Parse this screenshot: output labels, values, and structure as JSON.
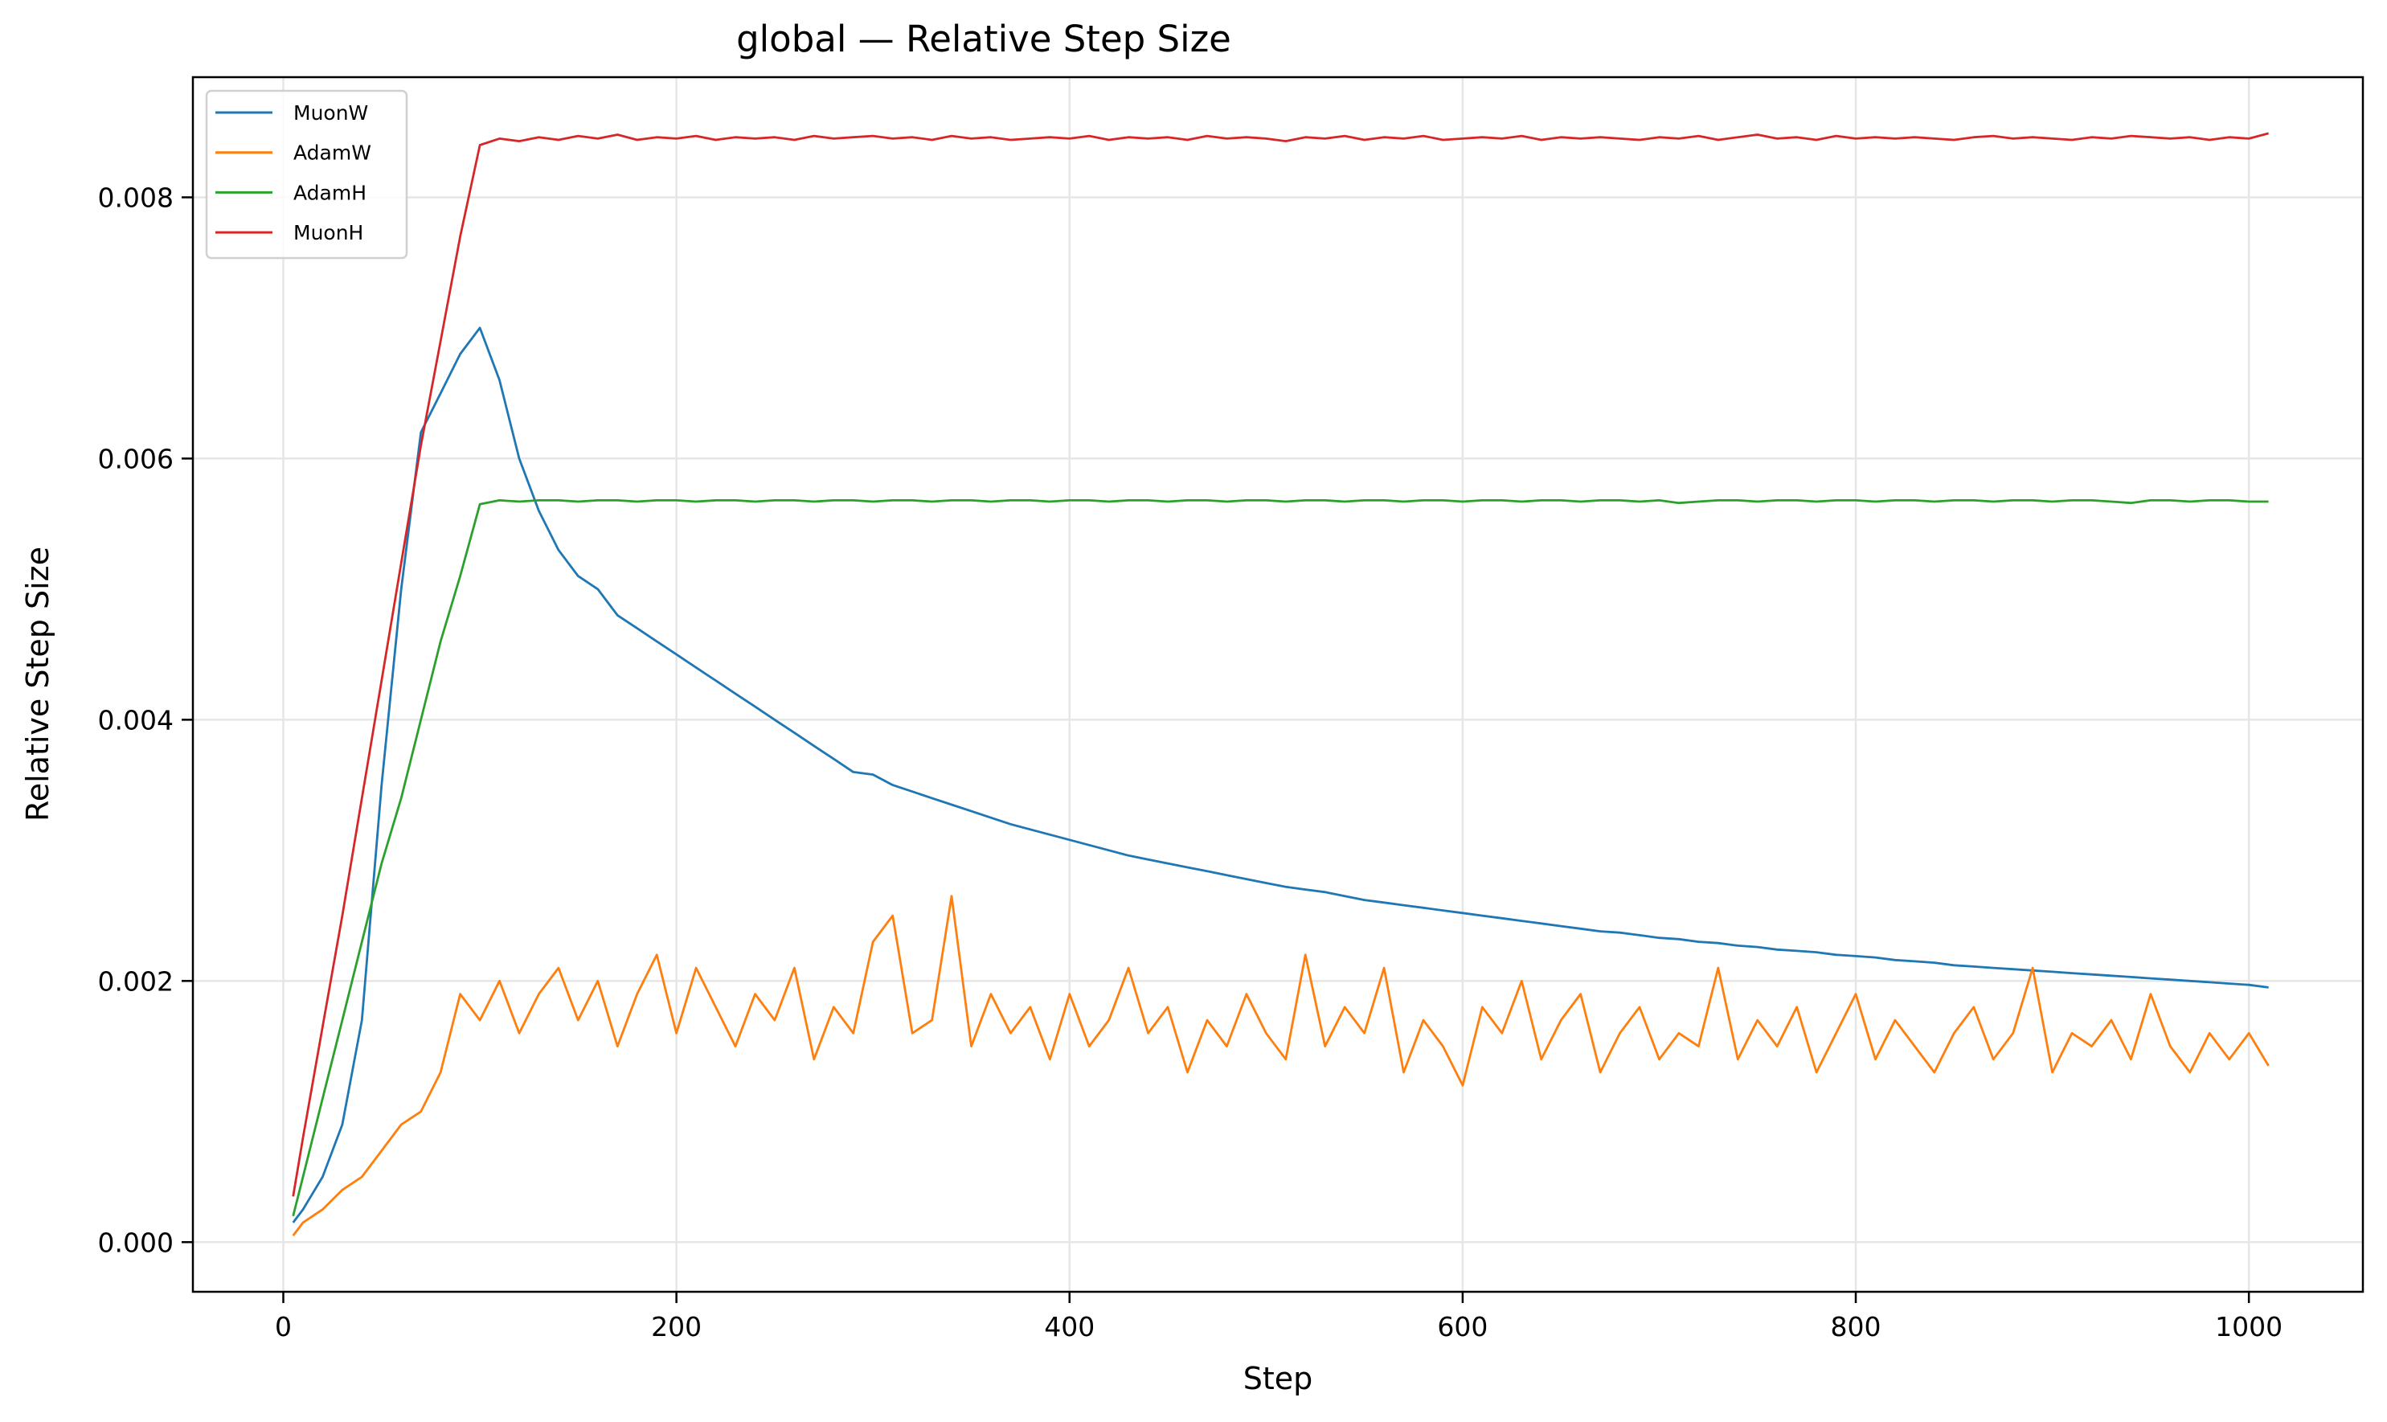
{
  "chart_data": {
    "type": "line",
    "title": "global — Relative Step Size",
    "xlabel": "Step",
    "ylabel": "Relative Step Size",
    "xlim": [
      -46,
      1058
    ],
    "ylim": [
      -0.00038,
      0.00892
    ],
    "xticks": [
      0,
      200,
      400,
      600,
      800,
      1000
    ],
    "xtick_labels": [
      "0",
      "200",
      "400",
      "600",
      "800",
      "1000"
    ],
    "yticks": [
      0,
      0.002,
      0.004,
      0.006,
      0.008
    ],
    "ytick_labels": [
      "0.000",
      "0.002",
      "0.004",
      "0.006",
      "0.008"
    ],
    "grid": true,
    "legend_position": "top-left",
    "x": [
      5,
      10,
      20,
      30,
      40,
      50,
      60,
      70,
      80,
      90,
      100,
      110,
      120,
      130,
      140,
      150,
      160,
      170,
      180,
      190,
      200,
      210,
      220,
      230,
      240,
      250,
      260,
      270,
      280,
      290,
      300,
      310,
      320,
      330,
      340,
      350,
      360,
      370,
      380,
      390,
      400,
      410,
      420,
      430,
      440,
      450,
      460,
      470,
      480,
      490,
      500,
      510,
      520,
      530,
      540,
      550,
      560,
      570,
      580,
      590,
      600,
      610,
      620,
      630,
      640,
      650,
      660,
      670,
      680,
      690,
      700,
      710,
      720,
      730,
      740,
      750,
      760,
      770,
      780,
      790,
      800,
      810,
      820,
      830,
      840,
      850,
      860,
      870,
      880,
      890,
      900,
      910,
      920,
      930,
      940,
      950,
      960,
      970,
      980,
      990,
      1000,
      1010
    ],
    "series": [
      {
        "name": "MuonW",
        "color": "#1f77b4",
        "values": [
          0.00015,
          0.00025,
          0.0005,
          0.0009,
          0.0017,
          0.0035,
          0.005,
          0.0062,
          0.0065,
          0.0068,
          0.007,
          0.0066,
          0.006,
          0.0056,
          0.0053,
          0.0051,
          0.005,
          0.0048,
          0.0047,
          0.0046,
          0.0045,
          0.0044,
          0.0043,
          0.0042,
          0.0041,
          0.004,
          0.0039,
          0.0038,
          0.0037,
          0.0036,
          0.00358,
          0.0035,
          0.00345,
          0.0034,
          0.00335,
          0.0033,
          0.00325,
          0.0032,
          0.00316,
          0.00312,
          0.00308,
          0.00304,
          0.003,
          0.00296,
          0.00293,
          0.0029,
          0.00287,
          0.00284,
          0.00281,
          0.00278,
          0.00275,
          0.00272,
          0.0027,
          0.00268,
          0.00265,
          0.00262,
          0.0026,
          0.00258,
          0.00256,
          0.00254,
          0.00252,
          0.0025,
          0.00248,
          0.00246,
          0.00244,
          0.00242,
          0.0024,
          0.00238,
          0.00237,
          0.00235,
          0.00233,
          0.00232,
          0.0023,
          0.00229,
          0.00227,
          0.00226,
          0.00224,
          0.00223,
          0.00222,
          0.0022,
          0.00219,
          0.00218,
          0.00216,
          0.00215,
          0.00214,
          0.00212,
          0.00211,
          0.0021,
          0.00209,
          0.00208,
          0.00207,
          0.00206,
          0.00205,
          0.00204,
          0.00203,
          0.00202,
          0.00201,
          0.002,
          0.00199,
          0.00198,
          0.00197,
          0.00195
        ]
      },
      {
        "name": "AdamW",
        "color": "#ff7f0e",
        "values": [
          5e-05,
          0.00015,
          0.00025,
          0.0004,
          0.0005,
          0.0007,
          0.0009,
          0.001,
          0.0013,
          0.0019,
          0.0017,
          0.002,
          0.0016,
          0.0019,
          0.0021,
          0.0017,
          0.002,
          0.0015,
          0.0019,
          0.0022,
          0.0016,
          0.0021,
          0.0018,
          0.0015,
          0.0019,
          0.0017,
          0.0021,
          0.0014,
          0.0018,
          0.0016,
          0.0023,
          0.0025,
          0.0016,
          0.0017,
          0.00265,
          0.0015,
          0.0019,
          0.0016,
          0.0018,
          0.0014,
          0.0019,
          0.0015,
          0.0017,
          0.0021,
          0.0016,
          0.0018,
          0.0013,
          0.0017,
          0.0015,
          0.0019,
          0.0016,
          0.0014,
          0.0022,
          0.0015,
          0.0018,
          0.0016,
          0.0021,
          0.0013,
          0.0017,
          0.0015,
          0.0012,
          0.0018,
          0.0016,
          0.002,
          0.0014,
          0.0017,
          0.0019,
          0.0013,
          0.0016,
          0.0018,
          0.0014,
          0.0016,
          0.0015,
          0.0021,
          0.0014,
          0.0017,
          0.0015,
          0.0018,
          0.0013,
          0.0016,
          0.0019,
          0.0014,
          0.0017,
          0.0015,
          0.0013,
          0.0016,
          0.0018,
          0.0014,
          0.0016,
          0.0021,
          0.0013,
          0.0016,
          0.0015,
          0.0017,
          0.0014,
          0.0019,
          0.0015,
          0.0013,
          0.0016,
          0.0014,
          0.0016,
          0.00135
        ]
      },
      {
        "name": "AdamH",
        "color": "#2ca02c",
        "values": [
          0.0002,
          0.0005,
          0.0011,
          0.0017,
          0.0023,
          0.0029,
          0.0034,
          0.004,
          0.0046,
          0.0051,
          0.00565,
          0.00568,
          0.00567,
          0.00568,
          0.00568,
          0.00567,
          0.00568,
          0.00568,
          0.00567,
          0.00568,
          0.00568,
          0.00567,
          0.00568,
          0.00568,
          0.00567,
          0.00568,
          0.00568,
          0.00567,
          0.00568,
          0.00568,
          0.00567,
          0.00568,
          0.00568,
          0.00567,
          0.00568,
          0.00568,
          0.00567,
          0.00568,
          0.00568,
          0.00567,
          0.00568,
          0.00568,
          0.00567,
          0.00568,
          0.00568,
          0.00567,
          0.00568,
          0.00568,
          0.00567,
          0.00568,
          0.00568,
          0.00567,
          0.00568,
          0.00568,
          0.00567,
          0.00568,
          0.00568,
          0.00567,
          0.00568,
          0.00568,
          0.00567,
          0.00568,
          0.00568,
          0.00567,
          0.00568,
          0.00568,
          0.00567,
          0.00568,
          0.00568,
          0.00567,
          0.00568,
          0.00566,
          0.00567,
          0.00568,
          0.00568,
          0.00567,
          0.00568,
          0.00568,
          0.00567,
          0.00568,
          0.00568,
          0.00567,
          0.00568,
          0.00568,
          0.00567,
          0.00568,
          0.00568,
          0.00567,
          0.00568,
          0.00568,
          0.00567,
          0.00568,
          0.00568,
          0.00567,
          0.00566,
          0.00568,
          0.00568,
          0.00567,
          0.00568,
          0.00568,
          0.00567,
          0.00567
        ]
      },
      {
        "name": "MuonH",
        "color": "#d62728",
        "values": [
          0.00035,
          0.0008,
          0.00165,
          0.0025,
          0.0034,
          0.0043,
          0.0052,
          0.0061,
          0.0069,
          0.0077,
          0.0084,
          0.00845,
          0.00843,
          0.00846,
          0.00844,
          0.00847,
          0.00845,
          0.00848,
          0.00844,
          0.00846,
          0.00845,
          0.00847,
          0.00844,
          0.00846,
          0.00845,
          0.00846,
          0.00844,
          0.00847,
          0.00845,
          0.00846,
          0.00847,
          0.00845,
          0.00846,
          0.00844,
          0.00847,
          0.00845,
          0.00846,
          0.00844,
          0.00845,
          0.00846,
          0.00845,
          0.00847,
          0.00844,
          0.00846,
          0.00845,
          0.00846,
          0.00844,
          0.00847,
          0.00845,
          0.00846,
          0.00845,
          0.00843,
          0.00846,
          0.00845,
          0.00847,
          0.00844,
          0.00846,
          0.00845,
          0.00847,
          0.00844,
          0.00845,
          0.00846,
          0.00845,
          0.00847,
          0.00844,
          0.00846,
          0.00845,
          0.00846,
          0.00845,
          0.00844,
          0.00846,
          0.00845,
          0.00847,
          0.00844,
          0.00846,
          0.00848,
          0.00845,
          0.00846,
          0.00844,
          0.00847,
          0.00845,
          0.00846,
          0.00845,
          0.00846,
          0.00845,
          0.00844,
          0.00846,
          0.00847,
          0.00845,
          0.00846,
          0.00845,
          0.00844,
          0.00846,
          0.00845,
          0.00847,
          0.00846,
          0.00845,
          0.00846,
          0.00844,
          0.00846,
          0.00845,
          0.00849
        ]
      }
    ]
  }
}
